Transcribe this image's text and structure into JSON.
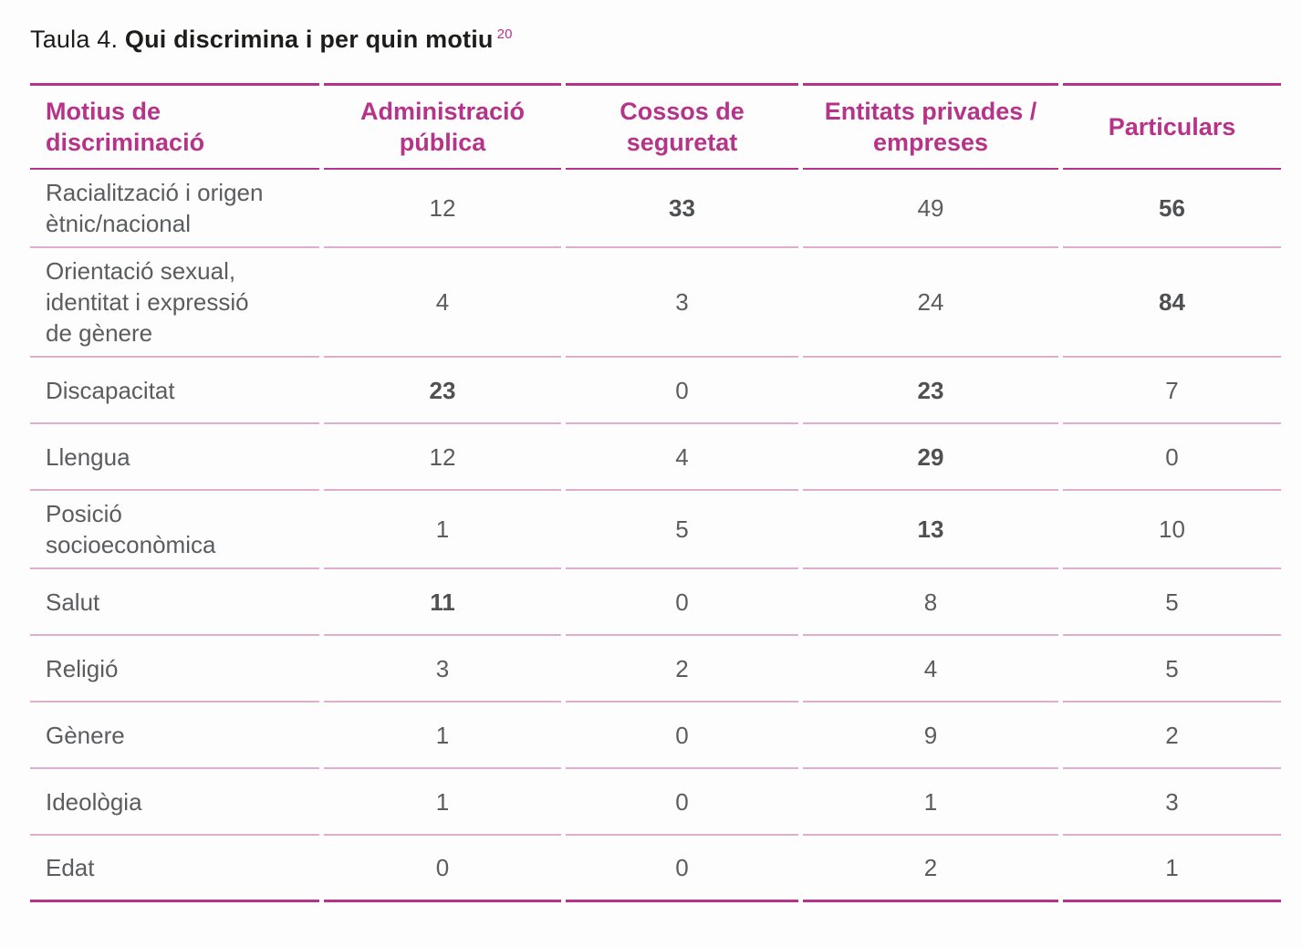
{
  "caption": {
    "prefix": "Taula 4.",
    "title": "Qui discrimina i per quin motiu",
    "footnote_ref": "20"
  },
  "colors": {
    "accent": "#b6338a",
    "row_separator": "#dfadcd",
    "body_text": "#5b5c5e",
    "title_text": "#1d1d1b",
    "background": "#fdfdfd"
  },
  "table": {
    "columns": [
      {
        "label": "Motius de\ndiscriminació"
      },
      {
        "label": "Administració\npública"
      },
      {
        "label": "Cossos de\nseguretat"
      },
      {
        "label": "Entitats privades /\nempreses"
      },
      {
        "label": "Particulars"
      }
    ],
    "rows": [
      {
        "label": "Racialització i origen\nètnic/nacional",
        "values": [
          {
            "v": "12",
            "bold": false
          },
          {
            "v": "33",
            "bold": true
          },
          {
            "v": "49",
            "bold": false
          },
          {
            "v": "56",
            "bold": true
          }
        ]
      },
      {
        "label": "Orientació sexual,\nidentitat i expressió\nde gènere",
        "values": [
          {
            "v": "4",
            "bold": false
          },
          {
            "v": "3",
            "bold": false
          },
          {
            "v": "24",
            "bold": false
          },
          {
            "v": "84",
            "bold": true
          }
        ]
      },
      {
        "label": "Discapacitat",
        "values": [
          {
            "v": "23",
            "bold": true
          },
          {
            "v": "0",
            "bold": false
          },
          {
            "v": "23",
            "bold": true
          },
          {
            "v": "7",
            "bold": false
          }
        ]
      },
      {
        "label": "Llengua",
        "values": [
          {
            "v": "12",
            "bold": false
          },
          {
            "v": "4",
            "bold": false
          },
          {
            "v": "29",
            "bold": true
          },
          {
            "v": "0",
            "bold": false
          }
        ]
      },
      {
        "label": "Posició\nsocioeconòmica",
        "values": [
          {
            "v": "1",
            "bold": false
          },
          {
            "v": "5",
            "bold": false
          },
          {
            "v": "13",
            "bold": true
          },
          {
            "v": "10",
            "bold": false
          }
        ]
      },
      {
        "label": "Salut",
        "values": [
          {
            "v": "11",
            "bold": true
          },
          {
            "v": "0",
            "bold": false
          },
          {
            "v": "8",
            "bold": false
          },
          {
            "v": "5",
            "bold": false
          }
        ]
      },
      {
        "label": "Religió",
        "values": [
          {
            "v": "3",
            "bold": false
          },
          {
            "v": "2",
            "bold": false
          },
          {
            "v": "4",
            "bold": false
          },
          {
            "v": "5",
            "bold": false
          }
        ]
      },
      {
        "label": "Gènere",
        "values": [
          {
            "v": "1",
            "bold": false
          },
          {
            "v": "0",
            "bold": false
          },
          {
            "v": "9",
            "bold": false
          },
          {
            "v": "2",
            "bold": false
          }
        ]
      },
      {
        "label": "Ideològia",
        "values": [
          {
            "v": "1",
            "bold": false
          },
          {
            "v": "0",
            "bold": false
          },
          {
            "v": "1",
            "bold": false
          },
          {
            "v": "3",
            "bold": false
          }
        ]
      },
      {
        "label": "Edat",
        "values": [
          {
            "v": "0",
            "bold": false
          },
          {
            "v": "0",
            "bold": false
          },
          {
            "v": "2",
            "bold": false
          },
          {
            "v": "1",
            "bold": false
          }
        ]
      }
    ]
  }
}
